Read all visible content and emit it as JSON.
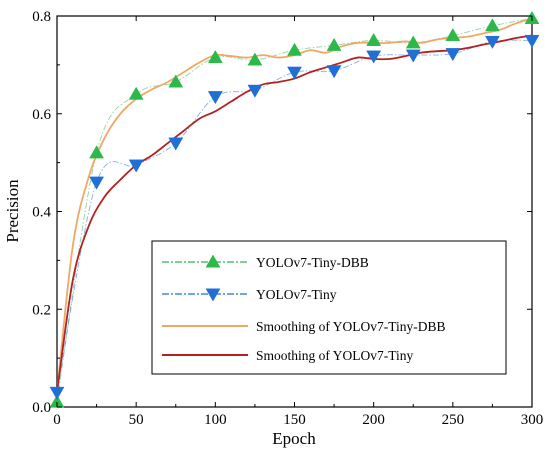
{
  "chart_data": {
    "type": "line",
    "title": "",
    "xlabel": "Epoch",
    "ylabel": "Precision",
    "xlim": [
      0,
      300
    ],
    "ylim": [
      0,
      0.8
    ],
    "xticks": [
      0,
      50,
      100,
      150,
      200,
      250,
      300
    ],
    "yticks": [
      0.0,
      0.2,
      0.4,
      0.6,
      0.8
    ],
    "xtick_labels": [
      "0",
      "50",
      "100",
      "150",
      "200",
      "250",
      "300"
    ],
    "ytick_labels": [
      "0.0",
      "0.2",
      "0.4",
      "0.6",
      "0.8"
    ],
    "legend_position": "center-right",
    "series": [
      {
        "name": "YOLOv7-Tiny-DBB",
        "style": "dash-dot with triangle-up markers",
        "color": "#2db84a",
        "marker_x": [
          0,
          25,
          50,
          75,
          100,
          125,
          150,
          175,
          200,
          225,
          250,
          275,
          300
        ],
        "marker_y": [
          0.01,
          0.52,
          0.64,
          0.665,
          0.715,
          0.71,
          0.73,
          0.74,
          0.75,
          0.745,
          0.76,
          0.78,
          0.795
        ]
      },
      {
        "name": "YOLOv7-Tiny",
        "style": "dash-dot with triangle-down markers",
        "color": "#1f6fd6",
        "marker_x": [
          0,
          25,
          50,
          75,
          100,
          125,
          150,
          175,
          200,
          225,
          250,
          275,
          300
        ],
        "marker_y": [
          0.03,
          0.46,
          0.495,
          0.54,
          0.635,
          0.648,
          0.685,
          0.688,
          0.718,
          0.72,
          0.723,
          0.748,
          0.75
        ]
      },
      {
        "name": "Smoothing of YOLOv7-Tiny-DBB",
        "style": "solid",
        "color": "#f0a868",
        "x": [
          0,
          10,
          20,
          30,
          40,
          50,
          60,
          70,
          80,
          90,
          100,
          110,
          120,
          130,
          140,
          150,
          160,
          170,
          180,
          190,
          200,
          210,
          220,
          230,
          240,
          250,
          260,
          270,
          280,
          290,
          300
        ],
        "y": [
          0.03,
          0.33,
          0.47,
          0.55,
          0.6,
          0.63,
          0.65,
          0.665,
          0.685,
          0.705,
          0.72,
          0.718,
          0.715,
          0.72,
          0.715,
          0.72,
          0.73,
          0.725,
          0.738,
          0.745,
          0.745,
          0.745,
          0.748,
          0.745,
          0.752,
          0.755,
          0.758,
          0.765,
          0.772,
          0.785,
          0.795
        ]
      },
      {
        "name": "Smoothing of YOLOv7-Tiny",
        "style": "solid",
        "color": "#b22222",
        "x": [
          0,
          10,
          20,
          30,
          40,
          50,
          60,
          70,
          80,
          90,
          100,
          110,
          120,
          130,
          140,
          150,
          160,
          170,
          180,
          190,
          200,
          210,
          220,
          230,
          240,
          250,
          260,
          270,
          280,
          290,
          300
        ],
        "y": [
          0.03,
          0.26,
          0.37,
          0.43,
          0.465,
          0.495,
          0.515,
          0.54,
          0.565,
          0.59,
          0.605,
          0.625,
          0.645,
          0.66,
          0.665,
          0.672,
          0.685,
          0.695,
          0.705,
          0.715,
          0.712,
          0.712,
          0.718,
          0.725,
          0.728,
          0.73,
          0.735,
          0.742,
          0.748,
          0.755,
          0.76
        ]
      }
    ]
  }
}
